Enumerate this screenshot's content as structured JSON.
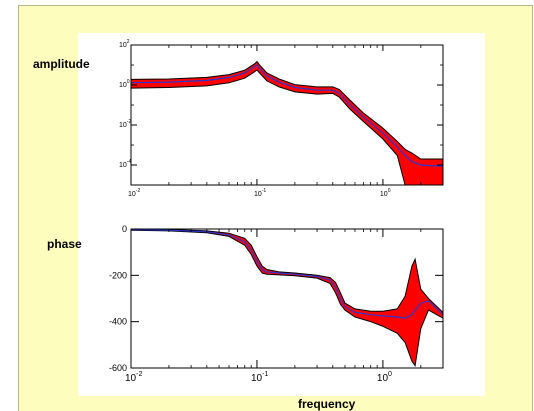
{
  "labels": {
    "amplitude": "amplitude",
    "phase": "phase",
    "frequency": "frequency"
  },
  "colors": {
    "background": "#fdfdbd",
    "band_fill": "#ff0000",
    "band_edge": "#000000",
    "nominal_line": "#2a35d0"
  },
  "chart_data": [
    {
      "type": "area",
      "ylabel": "amplitude",
      "xscale": "log",
      "yscale": "log",
      "xlim": [
        0.01,
        3
      ],
      "ylim": [
        1e-05,
        100
      ],
      "x_ticks": [
        {
          "base": "10",
          "exp": "-2"
        },
        {
          "base": "10",
          "exp": "-1"
        },
        {
          "base": "10",
          "exp": "0"
        }
      ],
      "y_ticks": [
        {
          "value": 100,
          "base": "10",
          "exp": "2"
        },
        {
          "value": 1,
          "base": "10",
          "exp": "0"
        },
        {
          "value": 0.01,
          "base": "10",
          "exp": "-2"
        },
        {
          "value": 0.0001,
          "base": "10",
          "exp": "-4"
        }
      ],
      "x": [
        0.01,
        0.02,
        0.04,
        0.06,
        0.08,
        0.095,
        0.1,
        0.105,
        0.12,
        0.15,
        0.2,
        0.3,
        0.4,
        0.45,
        0.55,
        0.7,
        1.0,
        1.3,
        1.5,
        1.7,
        2.0,
        2.5,
        3.0
      ],
      "series": [
        {
          "values": [
            1.3,
            1.4,
            1.7,
            2.4,
            4.0,
            8.0,
            10.0,
            7.0,
            2.8,
            1.4,
            0.75,
            0.55,
            0.55,
            0.4,
            0.1,
            0.025,
            0.004,
            0.0008,
            0.0003,
            0.00015,
            0.0001,
            9e-05,
            9e-05
          ]
        }
      ],
      "band": {
        "upper": [
          1.9,
          2.0,
          2.4,
          3.3,
          5.5,
          11,
          15,
          10,
          4.0,
          2.0,
          1.05,
          0.8,
          0.8,
          0.6,
          0.17,
          0.04,
          0.007,
          0.0015,
          0.0006,
          0.0004,
          0.0002,
          0.0002,
          0.0002
        ],
        "lower": [
          0.7,
          0.75,
          0.9,
          1.3,
          2.2,
          4.4,
          5.6,
          4.0,
          1.6,
          0.8,
          0.45,
          0.35,
          0.38,
          0.25,
          0.06,
          0.015,
          0.002,
          0.0003,
          1e-05,
          1e-05,
          1e-05,
          1e-05,
          1e-05
        ]
      }
    },
    {
      "type": "area",
      "ylabel": "phase",
      "xlabel": "frequency",
      "xscale": "log",
      "xlim": [
        0.01,
        3
      ],
      "ylim": [
        -600,
        0
      ],
      "x_ticks": [
        {
          "base": "10",
          "exp": "-2"
        },
        {
          "base": "10",
          "exp": "-1"
        },
        {
          "base": "10",
          "exp": "0"
        }
      ],
      "y_ticks": [
        {
          "value": 0,
          "label": "0"
        },
        {
          "value": -200,
          "label": "-200"
        },
        {
          "value": -400,
          "label": "-400"
        },
        {
          "value": -600,
          "label": "-600"
        }
      ],
      "x": [
        0.01,
        0.02,
        0.04,
        0.06,
        0.08,
        0.09,
        0.1,
        0.11,
        0.12,
        0.15,
        0.2,
        0.3,
        0.38,
        0.42,
        0.46,
        0.5,
        0.6,
        0.8,
        1.0,
        1.3,
        1.5,
        1.7,
        1.8,
        2.0,
        2.3,
        3.0
      ],
      "series": [
        {
          "values": [
            -2,
            -5,
            -12,
            -25,
            -55,
            -90,
            -140,
            -175,
            -185,
            -190,
            -195,
            -205,
            -220,
            -250,
            -300,
            -335,
            -360,
            -370,
            -375,
            -380,
            -385,
            -370,
            -350,
            -320,
            -310,
            -370
          ]
        }
      ],
      "band": {
        "upper": [
          0,
          -2,
          -8,
          -18,
          -40,
          -70,
          -120,
          -160,
          -175,
          -185,
          -190,
          -200,
          -210,
          -230,
          -275,
          -320,
          -345,
          -355,
          -355,
          -345,
          -290,
          -160,
          -130,
          -260,
          -300,
          -360
        ],
        "lower": [
          -5,
          -8,
          -16,
          -32,
          -70,
          -110,
          -160,
          -190,
          -195,
          -198,
          -202,
          -212,
          -235,
          -275,
          -325,
          -350,
          -380,
          -400,
          -420,
          -450,
          -490,
          -570,
          -590,
          -430,
          -350,
          -385
        ]
      }
    }
  ]
}
